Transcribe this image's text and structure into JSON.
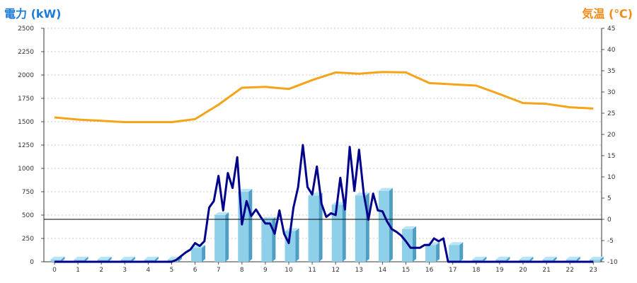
{
  "chart_data": {
    "type": "bar",
    "title_left": "電力 (kW)",
    "title_right": "気温 (℃)",
    "x_ticks": [
      0,
      1,
      2,
      3,
      4,
      5,
      6,
      7,
      8,
      9,
      10,
      11,
      12,
      13,
      14,
      15,
      16,
      17,
      18,
      19,
      20,
      21,
      22,
      23
    ],
    "y_left": {
      "min": 0,
      "max": 2500,
      "ticks": [
        "0",
        "250",
        "500",
        "750",
        "1000",
        "1250",
        "1500",
        "1750",
        "2000",
        "2250",
        "2500"
      ]
    },
    "y_right": {
      "min": -10,
      "max": 45,
      "ticks": [
        "-10",
        "-5",
        "0",
        "5",
        "10",
        "15",
        "20",
        "25",
        "30",
        "35",
        "40",
        "45"
      ]
    },
    "reference_line_temp": 0,
    "series": [
      {
        "kind": "bar",
        "axis": "left",
        "color": "#8ecfea",
        "values": [
          25,
          25,
          25,
          25,
          25,
          25,
          150,
          500,
          750,
          450,
          330,
          710,
          610,
          710,
          760,
          350,
          180,
          180,
          25,
          25,
          25,
          25,
          25,
          25
        ]
      },
      {
        "kind": "line",
        "axis": "left",
        "color": "#00008b",
        "x": [
          0,
          0.5,
          1,
          1.5,
          2,
          2.5,
          3,
          3.5,
          4,
          4.5,
          5,
          5.2,
          5.4,
          5.6,
          5.8,
          6,
          6.2,
          6.4,
          6.6,
          6.8,
          7,
          7.2,
          7.4,
          7.6,
          7.8,
          8,
          8.2,
          8.4,
          8.6,
          8.8,
          9,
          9.2,
          9.4,
          9.6,
          9.8,
          10,
          10.2,
          10.4,
          10.6,
          10.8,
          11,
          11.2,
          11.4,
          11.6,
          11.8,
          12,
          12.2,
          12.4,
          12.6,
          12.8,
          13,
          13.2,
          13.4,
          13.6,
          13.8,
          14,
          14.2,
          14.4,
          14.6,
          14.8,
          15,
          15.2,
          15.4,
          15.6,
          15.8,
          16,
          16.2,
          16.4,
          16.6,
          16.8,
          17,
          17.2,
          17.4,
          17.6,
          17.8,
          18,
          19,
          20,
          21,
          22,
          23
        ],
        "values": [
          0,
          0,
          0,
          0,
          0,
          0,
          0,
          0,
          0,
          0,
          0,
          20,
          60,
          100,
          130,
          200,
          170,
          220,
          580,
          650,
          920,
          550,
          950,
          790,
          1120,
          400,
          650,
          490,
          560,
          480,
          410,
          410,
          300,
          550,
          300,
          200,
          580,
          800,
          1250,
          800,
          720,
          1020,
          620,
          480,
          520,
          500,
          900,
          560,
          1230,
          760,
          1200,
          730,
          450,
          730,
          550,
          540,
          430,
          350,
          320,
          280,
          220,
          150,
          150,
          150,
          180,
          180,
          250,
          220,
          250,
          0,
          0,
          0,
          0,
          0,
          0,
          0,
          0,
          0,
          0,
          0,
          0
        ]
      },
      {
        "kind": "line",
        "axis": "right",
        "color": "#f5a318",
        "x": [
          0,
          1,
          2,
          3,
          4,
          5,
          6,
          7,
          8,
          9,
          10,
          11,
          12,
          13,
          14,
          15,
          16,
          17,
          18,
          19,
          20,
          21,
          22,
          23
        ],
        "values": [
          24,
          23.5,
          23.2,
          22.9,
          22.9,
          22.9,
          23.6,
          27,
          31,
          31.2,
          30.7,
          32.8,
          34.6,
          34.3,
          34.7,
          34.6,
          32.1,
          31.8,
          31.5,
          29.5,
          27.4,
          27.2,
          26.4,
          26.1
        ]
      }
    ],
    "grid": true
  }
}
